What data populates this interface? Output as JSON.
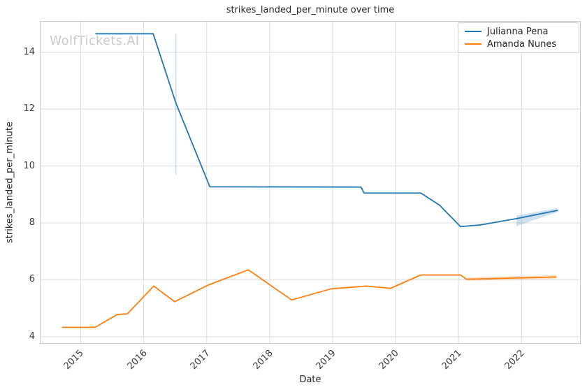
{
  "watermark": {
    "text": "WolfTickets.AI",
    "color": "#c9c9c9"
  },
  "chart_data": {
    "type": "line",
    "title": "strikes_landed_per_minute over time",
    "xlabel": "Date",
    "ylabel": "strikes_landed_per_minute",
    "xlim": [
      2014.35,
      2022.94
    ],
    "ylim": [
      3.75,
      15.1
    ],
    "grid": true,
    "legend_position": "upper-right",
    "xticks": [
      {
        "value": 2015,
        "label": "2015"
      },
      {
        "value": 2016,
        "label": "2016"
      },
      {
        "value": 2017,
        "label": "2017"
      },
      {
        "value": 2018,
        "label": "2018"
      },
      {
        "value": 2019,
        "label": "2019"
      },
      {
        "value": 2020,
        "label": "2020"
      },
      {
        "value": 2021,
        "label": "2021"
      },
      {
        "value": 2022,
        "label": "2022"
      }
    ],
    "yticks": [
      {
        "value": 4,
        "label": "4"
      },
      {
        "value": 6,
        "label": "6"
      },
      {
        "value": 8,
        "label": "8"
      },
      {
        "value": 10,
        "label": "10"
      },
      {
        "value": 12,
        "label": "12"
      },
      {
        "value": 14,
        "label": "14"
      }
    ],
    "series": [
      {
        "name": "Julianna Pena",
        "color": "#1f77b4",
        "x": [
          2015.24,
          2016.15,
          2016.51,
          2017.05,
          2019.45,
          2019.5,
          2020.4,
          2020.7,
          2021.03,
          2021.35,
          2021.92,
          2022.57
        ],
        "y": [
          14.65,
          14.65,
          12.22,
          9.27,
          9.26,
          9.05,
          9.05,
          8.62,
          7.87,
          7.93,
          8.15,
          8.44
        ]
      },
      {
        "name": "Amanda Nunes",
        "color": "#ff7f0e",
        "x": [
          2014.71,
          2015.23,
          2015.58,
          2015.74,
          2016.16,
          2016.49,
          2017.03,
          2017.66,
          2018.35,
          2018.97,
          2019.53,
          2019.92,
          2020.4,
          2021.03,
          2021.13,
          2022.55
        ],
        "y": [
          4.33,
          4.33,
          4.78,
          4.8,
          5.78,
          5.23,
          5.82,
          6.35,
          5.29,
          5.68,
          5.78,
          5.7,
          6.17,
          6.17,
          6.02,
          6.1
        ]
      }
    ],
    "uncertainty": {
      "vertical_line": {
        "series": "Julianna Pena",
        "x": 2016.51,
        "y_low": 9.7,
        "y_high": 14.65,
        "color": "rgba(31,119,180,0.25)"
      },
      "bands": [
        {
          "series": "Julianna Pena",
          "color": "rgba(31,119,180,0.22)",
          "polygon": [
            [
              2021.92,
              8.26
            ],
            [
              2022.57,
              8.52
            ],
            [
              2022.57,
              8.38
            ],
            [
              2021.92,
              7.89
            ]
          ]
        },
        {
          "series": "Amanda Nunes",
          "color": "rgba(255,127,14,0.20)",
          "polygon": [
            [
              2021.13,
              6.08
            ],
            [
              2022.55,
              6.17
            ],
            [
              2022.55,
              6.03
            ],
            [
              2021.13,
              5.97
            ]
          ]
        }
      ]
    }
  },
  "style": {
    "background": "#ffffff",
    "grid_color": "#dcdcdc",
    "spine_color": "#c8c8c8",
    "title_color": "#262626",
    "tick_color": "#3a3a3a"
  }
}
